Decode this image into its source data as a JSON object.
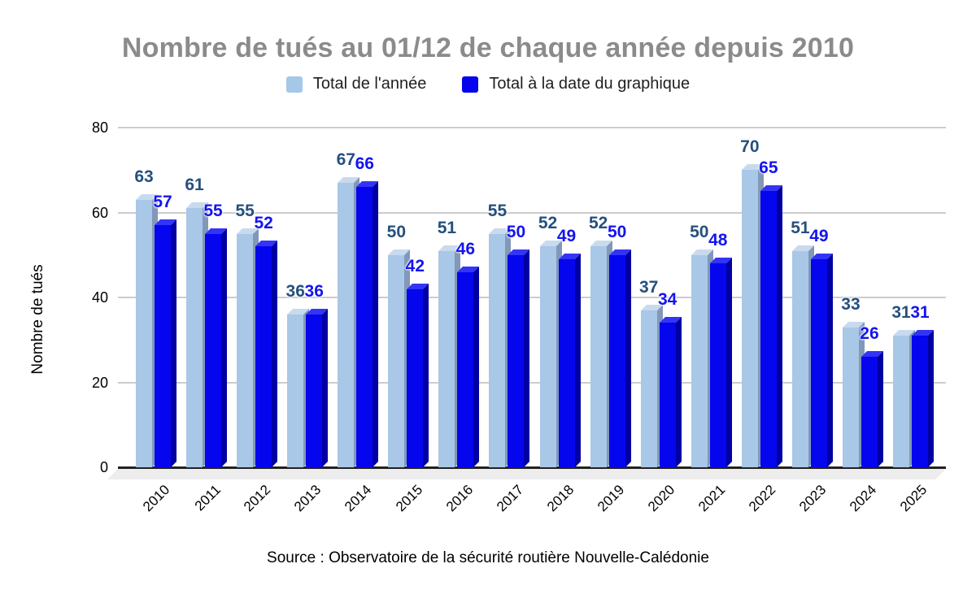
{
  "title": "Nombre de tués au 01/12 de chaque année depuis 2010",
  "legend": {
    "items": [
      {
        "label": "Total de l'année",
        "color": "#A5C8E8"
      },
      {
        "label": "Total à la date du graphique",
        "color": "#0404EF"
      }
    ]
  },
  "y_axis": {
    "title": "Nombre de tués"
  },
  "source_note": "Source : Observatoire de la sécurité routière Nouvelle-Calédonie",
  "chart_data": {
    "type": "bar",
    "title": "Nombre de tués au 01/12 de chaque année depuis 2010",
    "xlabel": "",
    "ylabel": "Nombre de tués",
    "ylim": [
      0,
      80
    ],
    "yticks": [
      0,
      20,
      40,
      60,
      80
    ],
    "grid": true,
    "legend_position": "top",
    "style": "3d-columns",
    "data_labels": true,
    "categories": [
      "2010",
      "2011",
      "2012",
      "2013",
      "2014",
      "2015",
      "2016",
      "2017",
      "2018",
      "2019",
      "2020",
      "2021",
      "2022",
      "2023",
      "2024",
      "2025"
    ],
    "series": [
      {
        "name": "Total de l'année",
        "values": [
          63,
          61,
          55,
          36,
          67,
          50,
          51,
          55,
          52,
          52,
          37,
          50,
          70,
          51,
          33,
          31
        ],
        "bar_color": "#A9C7E6",
        "bar_side_color": "#8298B8",
        "bar_top_color": "#C8DAEE",
        "label_color": "#25507D"
      },
      {
        "name": "Total à la date du graphique",
        "values": [
          57,
          55,
          52,
          36,
          66,
          42,
          46,
          50,
          49,
          50,
          34,
          48,
          65,
          49,
          26,
          31
        ],
        "bar_color": "#0506EE",
        "bar_side_color": "#0000A2",
        "bar_top_color": "#3434F7",
        "label_color": "#1414F0"
      }
    ],
    "colors": {
      "gridline": "#CCCCCC",
      "baseline": "#212121",
      "floor_shadow": "#EDEDED",
      "title": "#8B8B8B"
    }
  }
}
